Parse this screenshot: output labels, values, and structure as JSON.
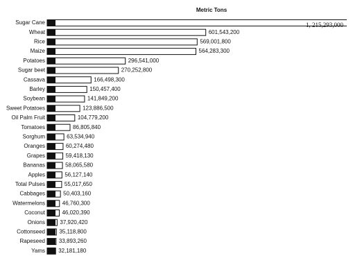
{
  "chart_data": {
    "type": "bar",
    "orientation": "horizontal",
    "title": "Metric Tons",
    "categories": [
      "Sugar Cane",
      "Wheat",
      "Rice",
      "Maize",
      "Potatoes",
      "Sugar beet",
      "Cassava",
      "Barley",
      "Soybean",
      "Sweet Potatoes",
      "Oil Palm Fruit",
      "Tomatoes",
      "Sorghum",
      "Oranges",
      "Grapes",
      "Bananas",
      "Apples",
      "Total Pulses",
      "Cabbages",
      "Watermelons",
      "Coconut",
      "Onions",
      "Cottonseed",
      "Rapeseed",
      "Yams"
    ],
    "values": [
      1215293000,
      601543200,
      569001800,
      564283300,
      296541000,
      270252800,
      166498300,
      150457400,
      141849200,
      123886500,
      104779200,
      86805840,
      63534940,
      60274480,
      59418130,
      58065580,
      56127140,
      55017650,
      50403160,
      46760300,
      46020390,
      37920420,
      35118800,
      33893260,
      32181180
    ],
    "value_labels": [
      "1, 215,293,000",
      "601,543,200",
      "569,001,800",
      "564,283,300",
      "296,541,000",
      "270,252,800",
      "166,498,300",
      "150,457,400",
      "141,849,200",
      "123,886,500",
      "104,779,200",
      "86,805,840",
      "63,534,940",
      "60,274,480",
      "59,418,130",
      "58,065,580",
      "56,127,140",
      "55,017,650",
      "50,403,160",
      "46,760,300",
      "46,020,390",
      "37,920,420",
      "35,118,800",
      "33,893,260",
      "32,181,180"
    ],
    "color": "#ffffff",
    "xlim": [
      0,
      1160000000
    ]
  }
}
